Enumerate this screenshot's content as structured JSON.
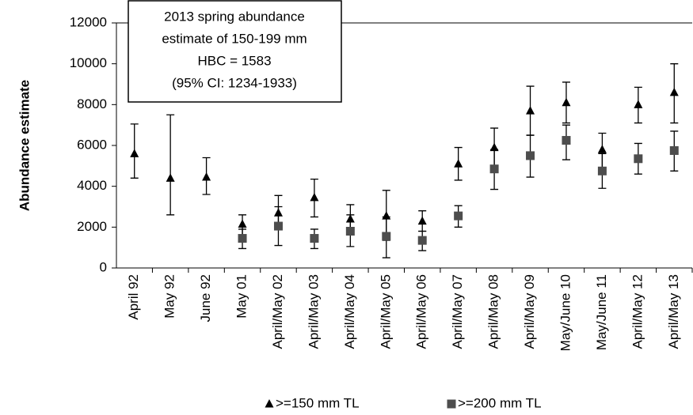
{
  "chart_data": {
    "type": "errorbar-scatter",
    "annotation": [
      "2013 spring abundance",
      "estimate of 150-199 mm",
      "HBC = 1583",
      "(95% CI: 1234-1933)"
    ],
    "ylabel": "Abundance estimate",
    "categories": [
      "April 92",
      "May 92",
      "June 92",
      "May 01",
      "April/May 02",
      "April/May 03",
      "April/May 04",
      "April/May 05",
      "April/May 06",
      "April/May 07",
      "April/May 08",
      "April/May 09",
      "May/June 10",
      "May/June 11",
      "April/May 12",
      "April/May 13"
    ],
    "series": [
      {
        "name": ">=150 mm TL",
        "marker": "triangle",
        "color": "#000000",
        "values": [
          5600,
          4400,
          4450,
          2150,
          2700,
          3450,
          2400,
          2550,
          2300,
          5100,
          5900,
          7700,
          8100,
          5800,
          8000,
          8600
        ],
        "lower": [
          4400,
          2600,
          3600,
          1600,
          2000,
          2500,
          1800,
          1350,
          1800,
          4300,
          4900,
          6500,
          7100,
          4900,
          7100,
          7100
        ],
        "upper": [
          7050,
          7500,
          5400,
          2600,
          3550,
          4350,
          3100,
          3800,
          2800,
          5900,
          6850,
          8900,
          9100,
          6600,
          8850,
          10000
        ]
      },
      {
        "name": ">=200 mm TL",
        "marker": "square",
        "color": "#4d4d4d",
        "values": [
          null,
          null,
          null,
          1450,
          2050,
          1450,
          1800,
          1550,
          1350,
          2550,
          4850,
          5500,
          6250,
          4750,
          5350,
          5750
        ],
        "lower": [
          null,
          null,
          null,
          950,
          1100,
          950,
          1050,
          500,
          850,
          2000,
          3850,
          4450,
          5300,
          3900,
          4600,
          4750
        ],
        "upper": [
          null,
          null,
          null,
          1900,
          3000,
          1900,
          2600,
          2500,
          1800,
          3050,
          5800,
          6500,
          7000,
          5600,
          6100,
          6700
        ]
      }
    ],
    "ylim": [
      0,
      12000
    ],
    "yticks": [
      0,
      2000,
      4000,
      6000,
      8000,
      10000,
      12000
    ],
    "grid": false,
    "legend": "bottom"
  }
}
